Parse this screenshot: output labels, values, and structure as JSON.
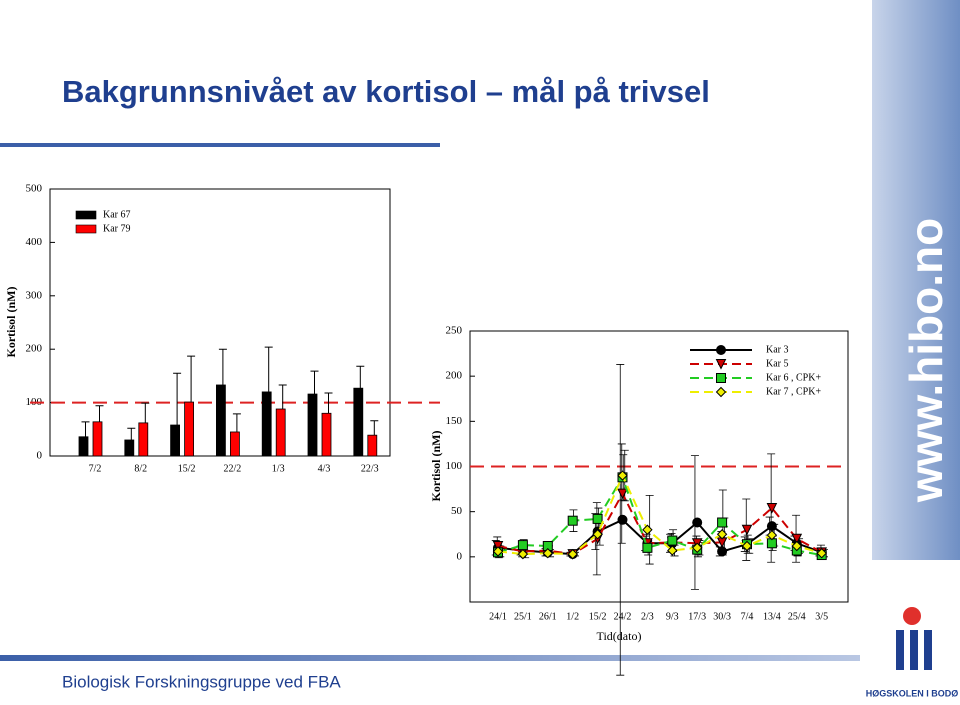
{
  "slide": {
    "title": "Bakgrunnsnivået av kortisol – mål på trivsel",
    "footer": "Biologisk Forskningsgruppe ved FBA",
    "side_text": "www.hibo.no",
    "logo_text": "HØGSKOLEN I BODØ"
  },
  "chart_data": [
    {
      "type": "bar",
      "y_label": "Kortisol (nM)",
      "categories": [
        "7/2",
        "8/2",
        "15/2",
        "22/2",
        "1/3",
        "4/3",
        "22/3"
      ],
      "series": [
        {
          "name": "Kar 67",
          "color": "#000000",
          "values": [
            36,
            30,
            58,
            133,
            120,
            116,
            127
          ],
          "errors": [
            28,
            22,
            97,
            67,
            84,
            43,
            41
          ]
        },
        {
          "name": "Kar 79",
          "color": "#ff0000",
          "values": [
            64,
            62,
            101,
            45,
            88,
            80,
            39
          ],
          "errors": [
            30,
            37,
            86,
            34,
            45,
            38,
            27
          ]
        }
      ],
      "reference_line": 100,
      "reference_color": "#dd2222",
      "ylim": [
        0,
        500
      ],
      "yticks": [
        0,
        100,
        200,
        300,
        400,
        500
      ]
    },
    {
      "type": "line",
      "y_label": "Kortisol (nM)",
      "x_label": "Tid(dato)",
      "categories": [
        "24/1",
        "25/1",
        "26/1",
        "1/2",
        "15/2",
        "24/2",
        "2/3",
        "9/3",
        "17/3",
        "30/3",
        "7/4",
        "13/4",
        "25/4",
        "3/5"
      ],
      "series": [
        {
          "name": "Kar 3",
          "color": "#000000",
          "marker": "circle",
          "dash": false,
          "values": [
            10,
            7,
            5,
            3,
            28,
            41,
            15,
            15,
            38,
            6,
            14,
            34,
            15,
            5
          ],
          "errors": [
            8,
            5,
            4,
            2,
            20,
            172,
            8,
            10,
            74,
            5,
            8,
            10,
            8,
            4
          ]
        },
        {
          "name": "Kar 5",
          "color": "#cc0000",
          "marker": "triangle-down",
          "dash": true,
          "values": [
            12,
            6,
            7,
            3,
            20,
            70,
            15,
            16,
            15,
            16,
            30,
            54,
            20,
            5
          ],
          "errors": [
            10,
            6,
            5,
            2,
            40,
            55,
            10,
            10,
            8,
            12,
            34,
            60,
            26,
            8
          ]
        },
        {
          "name": "Kar 6 , CPK+",
          "color": "#22cc22",
          "marker": "square",
          "dash": true,
          "values": [
            5,
            13,
            12,
            40,
            42,
            88,
            10,
            18,
            8,
            38,
            14,
            15,
            7,
            2
          ],
          "errors": [
            6,
            6,
            5,
            12,
            12,
            25,
            8,
            12,
            8,
            36,
            10,
            8,
            6,
            4
          ]
        },
        {
          "name": "Kar 7 , CPK+",
          "color": "#eeee00",
          "marker": "diamond",
          "dash": true,
          "values": [
            6,
            3,
            4,
            3,
            25,
            90,
            30,
            7,
            10,
            25,
            12,
            24,
            12,
            4
          ],
          "errors": [
            6,
            4,
            4,
            2,
            12,
            28,
            38,
            6,
            8,
            18,
            8,
            12,
            8,
            4
          ]
        }
      ],
      "reference_line": 100,
      "reference_color": "#dd2222",
      "ylim": [
        -50,
        250
      ],
      "yticks": [
        0,
        50,
        100,
        150,
        200,
        250
      ]
    }
  ]
}
